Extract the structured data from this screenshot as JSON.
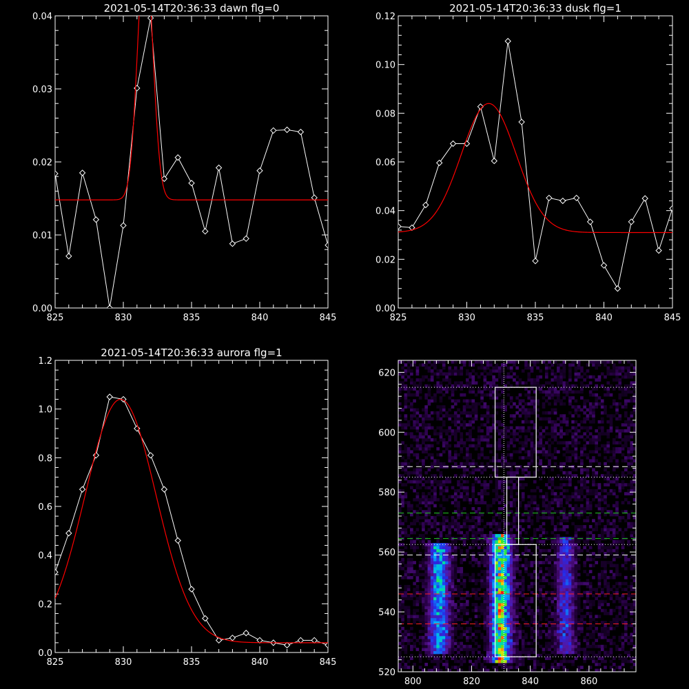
{
  "chart_data": [
    {
      "type": "line",
      "title": "2021-05-14T20:36:33 dawn flg=0",
      "xlim": [
        825,
        845
      ],
      "ylim": [
        0.0,
        0.04
      ],
      "xticks": [
        "825",
        "830",
        "835",
        "840",
        "845"
      ],
      "yticks": [
        "0.00",
        "0.01",
        "0.02",
        "0.03",
        "0.04"
      ],
      "series": [
        {
          "color": "#ffffff",
          "marker": "diamond",
          "x": [
            825,
            826,
            827,
            828,
            829,
            830,
            831,
            832,
            833,
            834,
            835,
            836,
            837,
            838,
            839,
            840,
            841,
            842,
            843,
            844,
            845
          ],
          "y": [
            0.0184,
            0.0071,
            0.0185,
            0.0121,
            0.0,
            0.0113,
            0.0301,
            0.0397,
            0.0177,
            0.0206,
            0.0171,
            0.0105,
            0.0192,
            0.0088,
            0.0095,
            0.0188,
            0.0243,
            0.0244,
            0.0241,
            0.0151,
            0.0086
          ]
        },
        {
          "color": "#ff0000",
          "marker": "none",
          "fit": {
            "kind": "gaussian",
            "amplitude": 0.035,
            "center": 831.6,
            "sigma": 0.55,
            "offset": 0.0148
          }
        }
      ]
    },
    {
      "type": "line",
      "title": "2021-05-14T20:36:33 dusk flg=1",
      "xlim": [
        825,
        845
      ],
      "ylim": [
        0.0,
        0.12
      ],
      "xticks": [
        "825",
        "830",
        "835",
        "840",
        "845"
      ],
      "yticks": [
        "0.00",
        "0.02",
        "0.04",
        "0.06",
        "0.08",
        "0.10",
        "0.12"
      ],
      "series": [
        {
          "color": "#ffffff",
          "marker": "diamond",
          "x": [
            825,
            826,
            827,
            828,
            829,
            830,
            831,
            832,
            833,
            834,
            835,
            836,
            837,
            838,
            839,
            840,
            841,
            842,
            843,
            844,
            845
          ],
          "y": [
            0.0335,
            0.033,
            0.0423,
            0.0596,
            0.0675,
            0.0675,
            0.0827,
            0.0604,
            0.1096,
            0.0764,
            0.0193,
            0.0452,
            0.044,
            0.0452,
            0.0354,
            0.0175,
            0.008,
            0.0354,
            0.045,
            0.0236,
            0.0409
          ]
        },
        {
          "color": "#ff0000",
          "marker": "none",
          "fit": {
            "kind": "gaussian",
            "amplitude": 0.053,
            "center": 831.6,
            "sigma": 2.0,
            "offset": 0.031
          }
        }
      ]
    },
    {
      "type": "line",
      "title": "2021-05-14T20:36:33 aurora flg=1",
      "xlim": [
        825,
        845
      ],
      "ylim": [
        0.0,
        1.2
      ],
      "xticks": [
        "825",
        "830",
        "835",
        "840",
        "845"
      ],
      "yticks": [
        "0.0",
        "0.2",
        "0.4",
        "0.6",
        "0.8",
        "1.0",
        "1.2"
      ],
      "series": [
        {
          "color": "#ffffff",
          "marker": "diamond",
          "x": [
            825,
            826,
            827,
            828,
            829,
            830,
            831,
            832,
            833,
            834,
            835,
            836,
            837,
            838,
            839,
            840,
            841,
            842,
            843,
            844,
            845
          ],
          "y": [
            0.33,
            0.49,
            0.67,
            0.81,
            1.05,
            1.04,
            0.92,
            0.81,
            0.67,
            0.46,
            0.26,
            0.14,
            0.05,
            0.06,
            0.08,
            0.05,
            0.04,
            0.03,
            0.05,
            0.05,
            0.03
          ]
        },
        {
          "color": "#ff0000",
          "marker": "none",
          "fit": {
            "kind": "gaussian",
            "amplitude": 1.0,
            "center": 829.8,
            "sigma": 2.6,
            "offset": 0.04
          }
        }
      ]
    },
    {
      "type": "heatmap",
      "title": "",
      "xlim": [
        795,
        876
      ],
      "ylim": [
        520,
        624
      ],
      "xticks": [
        "800",
        "820",
        "840",
        "860"
      ],
      "yticks": [
        "520",
        "540",
        "560",
        "580",
        "600",
        "620"
      ],
      "colormap": "rainbow",
      "emission_bands": [
        {
          "x_center": 809,
          "x_halfwidth": 3.5,
          "y_from": 527,
          "y_to": 562,
          "intensity": 0.55
        },
        {
          "x_center": 830,
          "x_halfwidth": 3.5,
          "y_from": 524,
          "y_to": 565,
          "intensity": 0.85
        },
        {
          "x_center": 852,
          "x_halfwidth": 3.0,
          "y_from": 527,
          "y_to": 564,
          "intensity": 0.35
        }
      ],
      "reference_lines": {
        "vertical_dotted_x": [
          831
        ],
        "horizontal_dotted_white": [
          615,
          585,
          562.5,
          525
        ],
        "horizontal_dashed_white": [
          588.5,
          559
        ],
        "horizontal_dashed_green": [
          573,
          564.5
        ],
        "horizontal_dashed_red": [
          546,
          536
        ],
        "colors": {
          "white": "#ffffff",
          "green": "#22cc22",
          "red": "#ff2020"
        }
      },
      "boxes": [
        {
          "x": [
            828,
            842
          ],
          "y": [
            585,
            615
          ],
          "color": "#ffffff"
        },
        {
          "x": [
            832,
            836
          ],
          "y": [
            562.5,
            585
          ],
          "color": "#ffffff"
        },
        {
          "x": [
            828,
            842
          ],
          "y": [
            525,
            562.5
          ],
          "color": "#ffffff"
        }
      ]
    }
  ]
}
